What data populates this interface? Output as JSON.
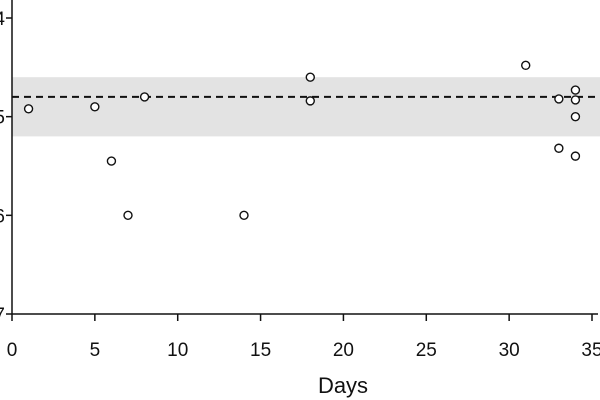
{
  "chart_data": {
    "type": "scatter",
    "xlabel": "Days",
    "ylabel": "",
    "xlim": [
      0,
      35
    ],
    "ylim": [
      -7,
      -4
    ],
    "x_ticks": [
      0,
      5,
      10,
      15,
      20,
      25,
      30,
      35
    ],
    "x_tick_labels": [
      "0",
      "5",
      "10",
      "15",
      "20",
      "25",
      "30",
      "35"
    ],
    "y_ticks": [
      -4,
      -5,
      -6,
      -7
    ],
    "y_tick_labels": [
      "4",
      "5",
      "6",
      "7"
    ],
    "reference_line": -4.8,
    "reference_band": [
      -5.2,
      -4.6
    ],
    "grid": false,
    "points": [
      {
        "x": 1,
        "y": -4.92
      },
      {
        "x": 5,
        "y": -4.9
      },
      {
        "x": 6,
        "y": -5.45
      },
      {
        "x": 7,
        "y": -6.0
      },
      {
        "x": 8,
        "y": -4.8
      },
      {
        "x": 14,
        "y": -6.0
      },
      {
        "x": 18,
        "y": -4.6
      },
      {
        "x": 18,
        "y": -4.84
      },
      {
        "x": 31,
        "y": -4.48
      },
      {
        "x": 33,
        "y": -4.82
      },
      {
        "x": 33,
        "y": -5.32
      },
      {
        "x": 34,
        "y": -4.73
      },
      {
        "x": 34,
        "y": -4.83
      },
      {
        "x": 34,
        "y": -5.0
      },
      {
        "x": 34,
        "y": -5.4
      }
    ],
    "colors": {
      "band": "#e3e3e3",
      "axis": "#111111",
      "marker_stroke": "#111111",
      "marker_fill": "#ffffff",
      "reference_line": "#111111"
    }
  }
}
